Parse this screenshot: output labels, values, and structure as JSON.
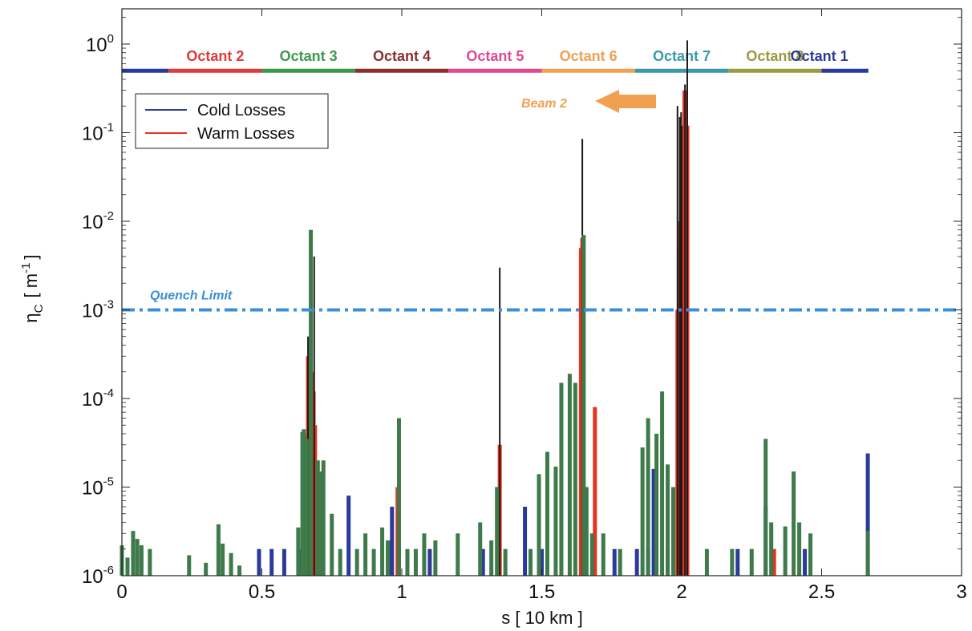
{
  "chart_data": {
    "type": "bar",
    "xlabel": "s [ 10 km ]",
    "ylabel_symbol": "η",
    "ylabel_sub": "C",
    "ylabel_unit_open": "[ m",
    "ylabel_unit_sup": "-1",
    "ylabel_unit_close": "]",
    "xlim": [
      0,
      3
    ],
    "ylim": [
      1e-06,
      2.5
    ],
    "yscale": "log",
    "grid": false,
    "x_ticks": [
      "0",
      "0.5",
      "1",
      "1.5",
      "2",
      "2.5",
      "3"
    ],
    "y_ticks": [
      {
        "base": "10",
        "exp": "-6"
      },
      {
        "base": "10",
        "exp": "-5"
      },
      {
        "base": "10",
        "exp": "-4"
      },
      {
        "base": "10",
        "exp": "-3"
      },
      {
        "base": "10",
        "exp": "-2"
      },
      {
        "base": "10",
        "exp": "-1"
      },
      {
        "base": "10",
        "exp": "0"
      }
    ],
    "legend": {
      "position": "top-left",
      "entries": [
        {
          "label": "Cold Losses",
          "color": "#2b3a9a"
        },
        {
          "label": "Warm Losses",
          "color": "#e8321e"
        }
      ]
    },
    "octants": [
      {
        "label": "Octant  2",
        "color": "#e03a3c",
        "x_start": 0.167,
        "x_end": 0.5
      },
      {
        "label": "Octant  3",
        "color": "#3a9a4a",
        "x_start": 0.5,
        "x_end": 0.833
      },
      {
        "label": "Octant  4",
        "color": "#8b2e2e",
        "x_start": 0.833,
        "x_end": 1.167
      },
      {
        "label": "Octant  5",
        "color": "#e0488f",
        "x_start": 1.167,
        "x_end": 1.5
      },
      {
        "label": "Octant  6",
        "color": "#f0a050",
        "x_start": 1.5,
        "x_end": 1.833
      },
      {
        "label": "Octant  7",
        "color": "#3a9aa8",
        "x_start": 1.833,
        "x_end": 2.167
      },
      {
        "label": "Octant  8",
        "color": "#9a9a40",
        "x_start": 2.167,
        "x_end": 2.5
      },
      {
        "label": "Octant  1",
        "color": "#2b3a9a",
        "x_start": 2.5,
        "x_end": 2.667
      }
    ],
    "octant_band_start": {
      "color": "#2b3a9a",
      "x_start": 0.0,
      "x_end": 0.167
    },
    "octant_band_y": 0.5,
    "quench_limit": {
      "label": "Quench Limit",
      "value": 0.001,
      "color": "#3a8fd8"
    },
    "beam_annotation": {
      "label": "Beam 2",
      "color": "#f0a050",
      "direction": "left"
    },
    "series": [
      {
        "name": "Cold Losses",
        "color": "#2b3a9a",
        "points": [
          [
            0.49,
            2e-06
          ],
          [
            0.535,
            2e-06
          ],
          [
            0.58,
            2e-06
          ],
          [
            0.64,
            2e-06
          ],
          [
            0.81,
            8e-06
          ],
          [
            0.96,
            2.5e-06
          ],
          [
            0.965,
            6e-06
          ],
          [
            1.1,
            2e-06
          ],
          [
            1.29,
            2e-06
          ],
          [
            1.44,
            6e-06
          ],
          [
            1.5,
            2e-06
          ],
          [
            1.76,
            2e-06
          ],
          [
            1.84,
            2e-06
          ],
          [
            1.88,
            2e-06
          ],
          [
            1.9,
            1.6e-05
          ],
          [
            1.95,
            2e-06
          ],
          [
            2.2,
            2e-06
          ],
          [
            2.3,
            6e-06
          ],
          [
            2.44,
            2e-06
          ],
          [
            2.665,
            2.4e-05
          ]
        ]
      },
      {
        "name": "Warm Losses",
        "color": "#e8321e",
        "points": [
          [
            0.655,
            4e-05
          ],
          [
            0.665,
            0.0003
          ],
          [
            0.672,
            0.00038
          ],
          [
            0.678,
            0.0002
          ],
          [
            0.685,
            0.00012
          ],
          [
            0.69,
            5e-05
          ],
          [
            0.985,
            1e-05
          ],
          [
            1.345,
            1e-05
          ],
          [
            1.35,
            3e-05
          ],
          [
            1.64,
            0.005
          ],
          [
            1.645,
            0.0065
          ],
          [
            1.69,
            8e-05
          ],
          [
            1.985,
            0.001
          ],
          [
            1.99,
            0.005
          ],
          [
            1.995,
            0.01
          ],
          [
            2.0,
            0.0012
          ],
          [
            2.005,
            0.015
          ],
          [
            2.01,
            0.3
          ],
          [
            2.015,
            0.05
          ],
          [
            2.02,
            0.12
          ],
          [
            2.33,
            2e-06
          ]
        ]
      },
      {
        "name": "",
        "color": "#1a1a1a",
        "points": [
          [
            0.665,
            0.0005
          ],
          [
            0.672,
            0.0004
          ],
          [
            0.687,
            0.004
          ],
          [
            1.35,
            0.003
          ],
          [
            1.645,
            0.085
          ],
          [
            1.985,
            0.2
          ],
          [
            1.993,
            0.15
          ],
          [
            1.998,
            0.17
          ],
          [
            2.0,
            0.12
          ],
          [
            2.012,
            0.35
          ],
          [
            2.02,
            1.1
          ]
        ]
      },
      {
        "name": "",
        "color": "#3e7a4a",
        "points": [
          [
            0.0,
            2.2e-06
          ],
          [
            0.02,
            1.6e-06
          ],
          [
            0.04,
            3.2e-06
          ],
          [
            0.055,
            2.6e-06
          ],
          [
            0.07,
            2.2e-06
          ],
          [
            0.1,
            2e-06
          ],
          [
            0.24,
            1.7e-06
          ],
          [
            0.3,
            1.4e-06
          ],
          [
            0.345,
            3.8e-06
          ],
          [
            0.36,
            2.3e-06
          ],
          [
            0.39,
            1.8e-06
          ],
          [
            0.42,
            1.3e-06
          ],
          [
            0.63,
            3.5e-06
          ],
          [
            0.645,
            4.2e-05
          ],
          [
            0.65,
            4.5e-05
          ],
          [
            0.66,
            3.5e-05
          ],
          [
            0.675,
            0.008
          ],
          [
            0.7,
            2e-05
          ],
          [
            0.71,
            1.5e-05
          ],
          [
            0.72,
            2e-05
          ],
          [
            0.75,
            5e-06
          ],
          [
            0.78,
            2e-06
          ],
          [
            0.84,
            2e-06
          ],
          [
            0.87,
            3e-06
          ],
          [
            0.9,
            2e-06
          ],
          [
            0.93,
            3.5e-06
          ],
          [
            0.95,
            2.5e-06
          ],
          [
            0.99,
            6e-05
          ],
          [
            1.02,
            2e-06
          ],
          [
            1.05,
            2e-06
          ],
          [
            1.08,
            3e-06
          ],
          [
            1.12,
            2.5e-06
          ],
          [
            1.2,
            3e-06
          ],
          [
            1.28,
            4e-06
          ],
          [
            1.32,
            2.5e-06
          ],
          [
            1.34,
            1e-05
          ],
          [
            1.37,
            2e-06
          ],
          [
            1.46,
            2e-06
          ],
          [
            1.49,
            1.4e-05
          ],
          [
            1.52,
            2.5e-05
          ],
          [
            1.55,
            1.7e-05
          ],
          [
            1.57,
            0.00015
          ],
          [
            1.6,
            0.00019
          ],
          [
            1.62,
            0.00015
          ],
          [
            1.65,
            0.007
          ],
          [
            1.66,
            1e-05
          ],
          [
            1.68,
            3e-06
          ],
          [
            1.72,
            3e-06
          ],
          [
            1.78,
            2e-06
          ],
          [
            1.86,
            2.8e-05
          ],
          [
            1.88,
            6e-05
          ],
          [
            1.91,
            4e-05
          ],
          [
            1.93,
            0.00012
          ],
          [
            1.95,
            1.8e-05
          ],
          [
            1.97,
            1e-05
          ],
          [
            2.09,
            2e-06
          ],
          [
            2.18,
            2e-06
          ],
          [
            2.25,
            2e-06
          ],
          [
            2.3,
            3.5e-05
          ],
          [
            2.32,
            4e-06
          ],
          [
            2.37,
            3.6e-06
          ],
          [
            2.4,
            1.5e-05
          ],
          [
            2.42,
            4e-06
          ],
          [
            2.46,
            3e-06
          ],
          [
            2.665,
            3.2e-06
          ]
        ]
      }
    ]
  }
}
